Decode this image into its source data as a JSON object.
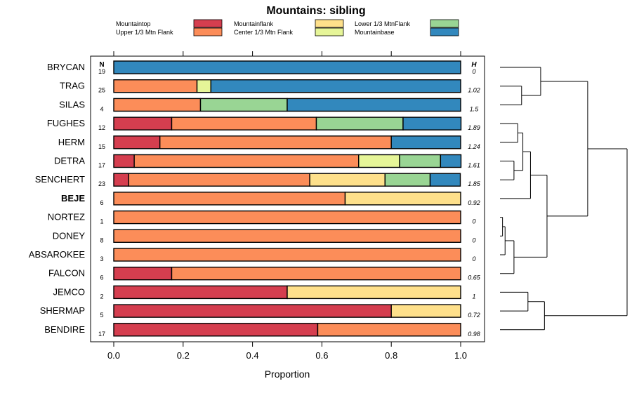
{
  "chart_data": {
    "type": "bar",
    "stacked": true,
    "orientation": "horizontal",
    "title": "Mountains: sibling",
    "xlabel": "Proportion",
    "ylabel": "",
    "xlim": [
      0,
      1
    ],
    "xticks": [
      "0.0",
      "0.2",
      "0.4",
      "0.6",
      "0.8",
      "1.0"
    ],
    "n_header": "N",
    "h_header": "H",
    "legend": [
      {
        "name": "Mountaintop",
        "color": "#d53e4f"
      },
      {
        "name": "Upper 1/3 Mtn Flank",
        "color": "#fc8d59"
      },
      {
        "name": "Mountainflank",
        "color": "#fee08b"
      },
      {
        "name": "Center 1/3 Mtn Flank",
        "color": "#e6f598"
      },
      {
        "name": "Lower 1/3 MtnFlank",
        "color": "#99d594"
      },
      {
        "name": "Mountainbase",
        "color": "#3288bd"
      }
    ],
    "legend_order": [
      0,
      2,
      4,
      1,
      3,
      5
    ],
    "highlight_category": "BEJE",
    "categories": [
      "BRYCAN",
      "TRAG",
      "SILAS",
      "FUGHES",
      "HERM",
      "DETRA",
      "SENCHERT",
      "BEJE",
      "NORTEZ",
      "DONEY",
      "ABSAROKEE",
      "FALCON",
      "JEMCO",
      "SHERMAP",
      "BENDIRE"
    ],
    "n": [
      "19",
      "25",
      "4",
      "12",
      "15",
      "17",
      "23",
      "6",
      "1",
      "8",
      "3",
      "6",
      "2",
      "5",
      "17"
    ],
    "h": [
      "0",
      "1.02",
      "1.5",
      "1.89",
      "1.24",
      "1.61",
      "1.85",
      "0.92",
      "0",
      "0",
      "0",
      "0.65",
      "1",
      "0.72",
      "0.98"
    ],
    "series": [
      {
        "name": "Mountaintop",
        "values": [
          0,
          0,
          0,
          0.167,
          0.133,
          0.059,
          0.043,
          0,
          0,
          0,
          0,
          0.167,
          0.5,
          0.8,
          0.588
        ]
      },
      {
        "name": "Upper 1/3 Mtn Flank",
        "values": [
          0,
          0.24,
          0.25,
          0.417,
          0.667,
          0.647,
          0.522,
          0.667,
          1,
          1,
          1,
          0.833,
          0,
          0,
          0.412
        ]
      },
      {
        "name": "Mountainflank",
        "values": [
          0,
          0,
          0,
          0,
          0,
          0,
          0.217,
          0.333,
          0,
          0,
          0,
          0,
          0.5,
          0.2,
          0
        ]
      },
      {
        "name": "Center 1/3 Mtn Flank",
        "values": [
          0,
          0.04,
          0,
          0,
          0,
          0.118,
          0,
          0,
          0,
          0,
          0,
          0,
          0,
          0,
          0
        ]
      },
      {
        "name": "Lower 1/3 MtnFlank",
        "values": [
          0,
          0,
          0.25,
          0.25,
          0,
          0.118,
          0.13,
          0,
          0,
          0,
          0,
          0,
          0,
          0,
          0
        ]
      },
      {
        "name": "Mountainbase",
        "values": [
          1,
          0.72,
          0.5,
          0.167,
          0.2,
          0.059,
          0.087,
          0,
          0,
          0,
          0,
          0,
          0,
          0,
          0
        ]
      }
    ],
    "dendrogram_merges": [
      {
        "a": "NORTEZ",
        "b": "DONEY",
        "height": 0.02
      },
      {
        "a": "m1",
        "b": "ABSAROKEE",
        "height": 0.04
      },
      {
        "a": "m2",
        "b": "FALCON",
        "height": 0.11
      },
      {
        "a": "DETRA",
        "b": "SENCHERT",
        "height": 0.11
      },
      {
        "a": "TRAG",
        "b": "SILAS",
        "height": 0.17
      },
      {
        "a": "FUGHES",
        "b": "HERM",
        "height": 0.14
      },
      {
        "a": "m6",
        "b": "m4",
        "height": 0.18
      },
      {
        "a": "m7",
        "b": "BEJE",
        "height": 0.24
      },
      {
        "a": "m8",
        "b": "m3",
        "height": 0.37
      },
      {
        "a": "BRYCAN",
        "b": "m5",
        "height": 0.32
      },
      {
        "a": "JEMCO",
        "b": "SHERMAP",
        "height": 0.22
      },
      {
        "a": "m11",
        "b": "BENDIRE",
        "height": 0.35
      },
      {
        "a": "m10",
        "b": "m9",
        "height": 0.69
      },
      {
        "a": "m13",
        "b": "m12",
        "height": 1.0
      }
    ]
  }
}
